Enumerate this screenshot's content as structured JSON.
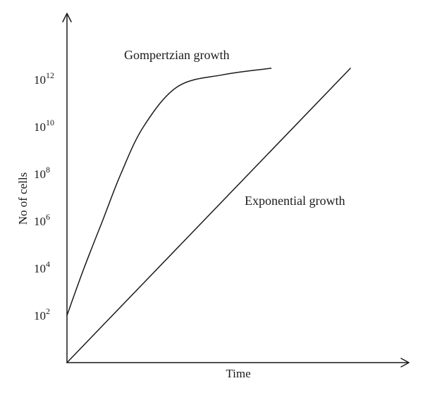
{
  "chart_data": {
    "type": "line",
    "title": "",
    "xlabel": "Time",
    "ylabel": "No of cells",
    "y_scale": "log10",
    "y_tick_base": "10",
    "y_tick_exponents": [
      "2",
      "4",
      "6",
      "8",
      "10",
      "12"
    ],
    "ylim": [
      1,
      1000000000000000.0
    ],
    "grid": false,
    "series": [
      {
        "name": "Gompertzian growth",
        "x_domain": [
          0,
          1
        ],
        "points": [
          {
            "x": 0.0,
            "y": 100
          },
          {
            "x": 0.06,
            "y": 10000
          },
          {
            "x": 0.125,
            "y": 1000000
          },
          {
            "x": 0.19,
            "y": 100000000
          },
          {
            "x": 0.27,
            "y": 10000000000
          },
          {
            "x": 0.39,
            "y": 500000000000
          },
          {
            "x": 0.55,
            "y": 1600000000000
          },
          {
            "x": 0.72,
            "y": 3000000000000
          }
        ]
      },
      {
        "name": "Exponential growth",
        "x_domain": [
          0,
          1
        ],
        "points": [
          {
            "x": 0.0,
            "y": 1
          },
          {
            "x": 1.0,
            "y": 3000000000000
          }
        ]
      }
    ]
  }
}
